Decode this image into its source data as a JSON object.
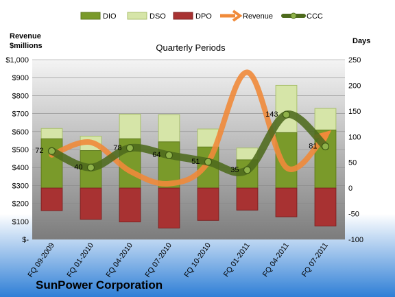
{
  "chart_data": {
    "type": "bar",
    "subtitle": "Quarterly Periods",
    "company": "SunPower Corporation",
    "left_axis_title": [
      "Revenue",
      "$millions"
    ],
    "right_axis_title": "Days",
    "categories": [
      "FQ 09-2009",
      "FQ 01-2010",
      "FQ 04-2010",
      "FQ 07-2010",
      "FQ 10-2010",
      "FQ 01-2011",
      "FQ 04-2011",
      "FQ 07-2011"
    ],
    "left_ticks": [
      "$-",
      "$100",
      "$200",
      "$300",
      "$400",
      "$500",
      "$600",
      "$700",
      "$800",
      "$900",
      "$1,000"
    ],
    "right_ticks": [
      "-100",
      "-50",
      "0",
      "50",
      "100",
      "150",
      "200",
      "250"
    ],
    "left_ylim": [
      0,
      1000
    ],
    "right_ylim": [
      -100,
      250
    ],
    "series": [
      {
        "name": "DIO",
        "axis": "days",
        "values": [
          96,
          73,
          96,
          90,
          80,
          55,
          108,
          113
        ]
      },
      {
        "name": "DSO",
        "axis": "days",
        "values": [
          116,
          101,
          144,
          143,
          115,
          78,
          200,
          155
        ]
      },
      {
        "name": "DPO",
        "axis": "days",
        "values": [
          -44,
          -61,
          -66,
          -78,
          -63,
          -43,
          -56,
          -74
        ]
      },
      {
        "name": "Revenue",
        "axis": "money",
        "values": [
          470,
          540,
          380,
          310,
          430,
          930,
          400,
          580
        ]
      },
      {
        "name": "CCC",
        "axis": "days",
        "values": [
          72,
          40,
          78,
          64,
          51,
          35,
          143,
          81
        ]
      }
    ],
    "ccc_labels": [
      "72",
      "40",
      "78",
      "64",
      "51",
      "35",
      "143",
      "81"
    ],
    "colors": {
      "DIO": "#7a9a2a",
      "DSO": "#d6e5a8",
      "DPO": "#a83232",
      "Revenue": "#f08a3a",
      "CCC": "#4d6a1c"
    }
  }
}
